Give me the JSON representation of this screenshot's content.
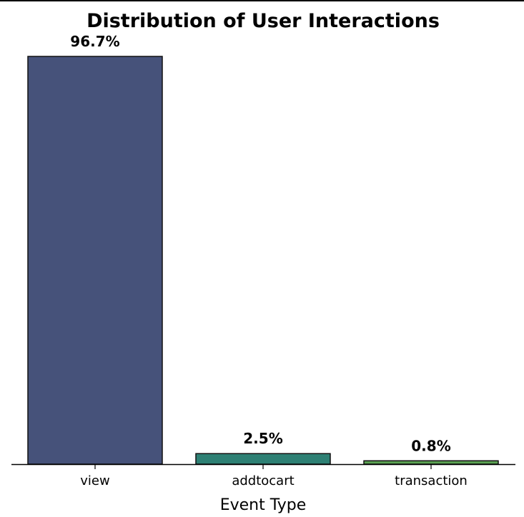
{
  "chart_data": {
    "type": "bar",
    "title": "Distribution of User Interactions",
    "xlabel": "Event Type",
    "ylabel": "",
    "categories": [
      "view",
      "addtocart",
      "transaction"
    ],
    "values": [
      96.7,
      2.5,
      0.8
    ],
    "data_labels": [
      "96.7%",
      "2.5%",
      "0.8%"
    ],
    "colors": [
      "#46527a",
      "#2e8074",
      "#5aa052"
    ],
    "ylim": [
      0,
      100
    ],
    "grid": false,
    "legend": "none"
  }
}
